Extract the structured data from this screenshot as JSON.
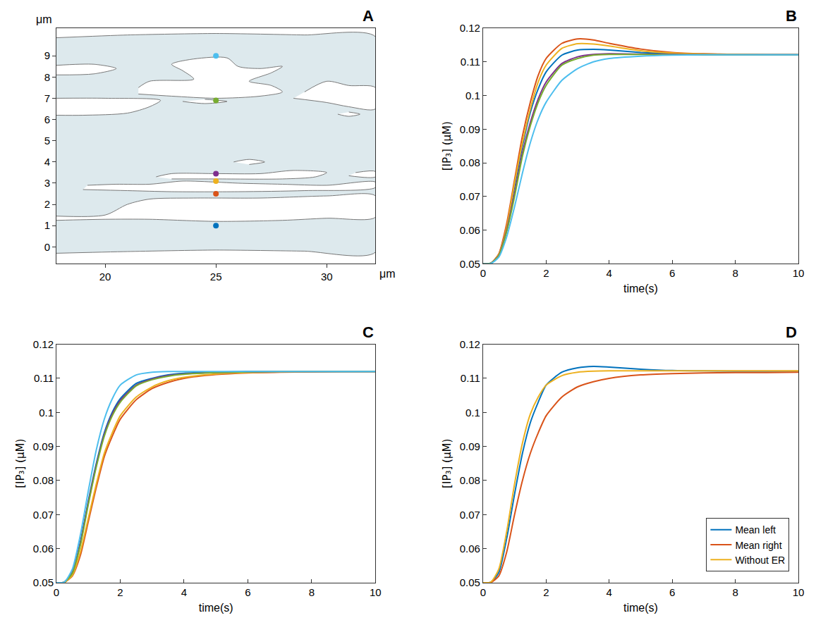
{
  "chart_data": [
    {
      "type": "shape",
      "label": "A",
      "xlabel": "μm",
      "ylabel": "μm",
      "xlim": [
        17.8,
        32.2
      ],
      "ylim": [
        -0.8,
        10.3
      ],
      "xticks": [
        20,
        25,
        30
      ],
      "yticks": [
        0,
        1,
        2,
        3,
        4,
        5,
        6,
        7,
        8,
        9
      ],
      "grid": false,
      "cell": {
        "color": "#dde9ed",
        "x": [
          17.8,
          21,
          25,
          29,
          32.2,
          32.2,
          29,
          25,
          21,
          17.8
        ],
        "y": [
          9.85,
          9.98,
          10.05,
          9.98,
          9.9,
          -0.25,
          -0.2,
          -0.15,
          -0.22,
          -0.3
        ]
      },
      "regions": {
        "color": "#ffffff",
        "shapes": [
          {
            "x": [
              17.8,
              20,
              22,
              25,
              28,
              30,
              32.2,
              32.2,
              30,
              27,
              24,
              22,
              21,
              20,
              17.8
            ],
            "y": [
              1.25,
              1.3,
              1.3,
              1.2,
              1.25,
              1.35,
              1.4,
              2.4,
              2.4,
              2.3,
              2.3,
              2.25,
              2.0,
              1.5,
              1.45
            ]
          },
          {
            "x": [
              19,
              21,
              23,
              26,
              29,
              32.2,
              32.2,
              30,
              28,
              26,
              25,
              23.5,
              22,
              20.5,
              19.2
            ],
            "y": [
              2.7,
              2.65,
              2.6,
              2.6,
              2.65,
              2.8,
              3.05,
              2.9,
              2.95,
              3.0,
              3.05,
              3.1,
              2.95,
              2.95,
              2.9
            ]
          },
          {
            "x": [
              22.3,
              23,
              25,
              27,
              28.5,
              30,
              29.5,
              28,
              25,
              23
            ],
            "y": [
              3.3,
              3.45,
              3.45,
              3.45,
              3.6,
              3.5,
              3.3,
              3.2,
              3.2,
              3.2
            ]
          },
          {
            "x": [
              25.8,
              26.5,
              27.2,
              26.5
            ],
            "y": [
              4.0,
              4.12,
              4.0,
              3.88
            ]
          },
          {
            "x": [
              31,
              32.2,
              32.2,
              31.3
            ],
            "y": [
              3.35,
              3.3,
              3.55,
              3.5
            ]
          },
          {
            "x": [
              21.5,
              23,
              25,
              27,
              28,
              27.5,
              26.5,
              27.5,
              28,
              27,
              26,
              25.5,
              24,
              23,
              23.5,
              24,
              22,
              21.5
            ],
            "y": [
              7.2,
              7.1,
              7.0,
              7.1,
              7.3,
              7.6,
              7.8,
              8.2,
              8.5,
              8.4,
              8.5,
              8.9,
              8.85,
              8.6,
              8.3,
              7.9,
              7.8,
              7.5
            ]
          },
          {
            "x": [
              17.8,
              19,
              21,
              22,
              22.5,
              20,
              17.8
            ],
            "y": [
              6.2,
              6.2,
              6.3,
              6.6,
              6.9,
              7.0,
              7.0
            ]
          },
          {
            "x": [
              17.8,
              19.5,
              20.5,
              19.5,
              17.8
            ],
            "y": [
              8.1,
              8.15,
              8.4,
              8.6,
              8.55
            ]
          },
          {
            "x": [
              28.5,
              30,
              31,
              32.2,
              32.2,
              31,
              30,
              29
            ],
            "y": [
              7.0,
              6.8,
              6.6,
              6.5,
              7.5,
              7.6,
              7.8,
              7.3
            ]
          },
          {
            "x": [
              23.5,
              24.5,
              25.5,
              24.5
            ],
            "y": [
              6.85,
              6.75,
              6.85,
              6.95
            ]
          },
          {
            "x": [
              30.5,
              31,
              31.5,
              31
            ],
            "y": [
              6.25,
              6.15,
              6.25,
              6.35
            ]
          }
        ]
      },
      "points": {
        "x": [
          25,
          25,
          25,
          25,
          25,
          25
        ],
        "y": [
          1.0,
          2.5,
          3.1,
          3.45,
          6.9,
          9.0
        ],
        "colors": [
          "#0072BD",
          "#D95319",
          "#EDB120",
          "#7E2F8E",
          "#77AC30",
          "#4DBEEE"
        ]
      }
    },
    {
      "type": "line",
      "label": "B",
      "xlabel": "time(s)",
      "ylabel": "[IP₃] (μM)",
      "xlim": [
        0,
        10
      ],
      "ylim": [
        0.05,
        0.12
      ],
      "xticks": [
        0,
        2,
        4,
        6,
        8,
        10
      ],
      "yticks": [
        0.05,
        0.06,
        0.07,
        0.08,
        0.09,
        0.1,
        0.11,
        0.12
      ],
      "grid": false,
      "x": [
        0,
        0.25,
        0.5,
        0.75,
        1,
        1.25,
        1.5,
        1.75,
        2,
        2.5,
        3,
        3.5,
        4,
        5,
        6,
        7,
        8,
        9,
        10
      ],
      "series": [
        {
          "color": "#0072BD",
          "values": [
            0.05,
            0.0502,
            0.0527,
            0.061,
            0.073,
            0.085,
            0.095,
            0.102,
            0.107,
            0.112,
            0.1135,
            0.1137,
            0.1135,
            0.1128,
            0.1124,
            0.1122,
            0.1121,
            0.1121,
            0.1121
          ]
        },
        {
          "color": "#D95319",
          "values": [
            0.05,
            0.0502,
            0.053,
            0.062,
            0.075,
            0.088,
            0.098,
            0.106,
            0.111,
            0.1155,
            0.1168,
            0.1165,
            0.1155,
            0.1138,
            0.1128,
            0.1124,
            0.1122,
            0.1121,
            0.1121
          ]
        },
        {
          "color": "#EDB120",
          "values": [
            0.05,
            0.0502,
            0.0528,
            0.061,
            0.074,
            0.086,
            0.096,
            0.104,
            0.109,
            0.114,
            0.1154,
            0.1153,
            0.1147,
            0.1133,
            0.1126,
            0.1123,
            0.1122,
            0.1121,
            0.1121
          ]
        },
        {
          "color": "#7E2F8E",
          "values": [
            0.05,
            0.0502,
            0.0525,
            0.06,
            0.071,
            0.083,
            0.092,
            0.099,
            0.104,
            0.1095,
            0.1115,
            0.1122,
            0.1124,
            0.1123,
            0.1122,
            0.1121,
            0.1121,
            0.1121,
            0.1121
          ]
        },
        {
          "color": "#77AC30",
          "values": [
            0.05,
            0.0502,
            0.0524,
            0.0595,
            0.07,
            0.082,
            0.091,
            0.098,
            0.103,
            0.109,
            0.111,
            0.112,
            0.1122,
            0.1122,
            0.1121,
            0.1121,
            0.1121,
            0.1121,
            0.1121
          ]
        },
        {
          "color": "#4DBEEE",
          "values": [
            0.05,
            0.0501,
            0.052,
            0.058,
            0.067,
            0.077,
            0.086,
            0.093,
            0.098,
            0.1045,
            0.108,
            0.11,
            0.111,
            0.1117,
            0.112,
            0.1121,
            0.1121,
            0.1121,
            0.1121
          ]
        }
      ]
    },
    {
      "type": "line",
      "label": "C",
      "xlabel": "time(s)",
      "ylabel": "[IP₃] (μM)",
      "xlim": [
        0,
        10
      ],
      "ylim": [
        0.05,
        0.12
      ],
      "xticks": [
        0,
        2,
        4,
        6,
        8,
        10
      ],
      "yticks": [
        0.05,
        0.06,
        0.07,
        0.08,
        0.09,
        0.1,
        0.11,
        0.12
      ],
      "grid": false,
      "x": [
        0,
        0.25,
        0.5,
        0.75,
        1,
        1.25,
        1.5,
        1.75,
        2,
        2.5,
        3,
        3.5,
        4,
        5,
        6,
        7,
        8,
        9,
        10
      ],
      "series": [
        {
          "color": "#0072BD",
          "values": [
            0.05,
            0.0502,
            0.053,
            0.062,
            0.074,
            0.085,
            0.094,
            0.1,
            0.104,
            0.1085,
            0.11,
            0.111,
            0.1115,
            0.1118,
            0.112,
            0.112,
            0.112,
            0.112,
            0.112
          ]
        },
        {
          "color": "#D95319",
          "values": [
            0.05,
            0.0501,
            0.052,
            0.058,
            0.068,
            0.078,
            0.087,
            0.093,
            0.098,
            0.1037,
            0.107,
            0.1088,
            0.11,
            0.1111,
            0.1116,
            0.1118,
            0.1119,
            0.112,
            0.112
          ]
        },
        {
          "color": "#EDB120",
          "values": [
            0.05,
            0.0501,
            0.0522,
            0.059,
            0.069,
            0.079,
            0.088,
            0.094,
            0.099,
            0.1045,
            0.1075,
            0.1093,
            0.1103,
            0.1113,
            0.1117,
            0.1119,
            0.112,
            0.112,
            0.112
          ]
        },
        {
          "color": "#7E2F8E",
          "values": [
            0.05,
            0.0502,
            0.053,
            0.0615,
            0.0735,
            0.0845,
            0.0935,
            0.0995,
            0.1035,
            0.108,
            0.1098,
            0.1108,
            0.1113,
            0.1117,
            0.1119,
            0.112,
            0.112,
            0.112,
            0.112
          ]
        },
        {
          "color": "#77AC30",
          "values": [
            0.05,
            0.0502,
            0.0528,
            0.061,
            0.073,
            0.084,
            0.093,
            0.099,
            0.103,
            0.1078,
            0.1096,
            0.1106,
            0.1112,
            0.1117,
            0.1119,
            0.112,
            0.112,
            0.112,
            0.112
          ]
        },
        {
          "color": "#4DBEEE",
          "values": [
            0.05,
            0.0502,
            0.054,
            0.064,
            0.077,
            0.089,
            0.098,
            0.104,
            0.108,
            0.111,
            0.1118,
            0.112,
            0.112,
            0.112,
            0.112,
            0.112,
            0.112,
            0.112,
            0.112
          ]
        }
      ]
    },
    {
      "type": "line",
      "label": "D",
      "xlabel": "time(s)",
      "ylabel": "[IP₃] (μM)",
      "xlim": [
        0,
        10
      ],
      "ylim": [
        0.05,
        0.12
      ],
      "xticks": [
        0,
        2,
        4,
        6,
        8,
        10
      ],
      "yticks": [
        0.05,
        0.06,
        0.07,
        0.08,
        0.09,
        0.1,
        0.11,
        0.12
      ],
      "grid": false,
      "legend": "lower right",
      "x": [
        0,
        0.25,
        0.5,
        0.75,
        1,
        1.25,
        1.5,
        1.75,
        2,
        2.5,
        3,
        3.5,
        4,
        5,
        6,
        7,
        8,
        9,
        10
      ],
      "series": [
        {
          "name": "Mean left",
          "color": "#0072BD",
          "values": [
            0.05,
            0.0502,
            0.053,
            0.063,
            0.076,
            0.088,
            0.097,
            0.103,
            0.108,
            0.1118,
            0.1131,
            0.1135,
            0.1133,
            0.1127,
            0.1123,
            0.1122,
            0.1121,
            0.1121,
            0.1121
          ]
        },
        {
          "name": "Mean right",
          "color": "#D95319",
          "values": [
            0.05,
            0.0501,
            0.052,
            0.059,
            0.07,
            0.08,
            0.088,
            0.094,
            0.099,
            0.1045,
            0.1075,
            0.109,
            0.11,
            0.111,
            0.1114,
            0.1116,
            0.1117,
            0.1117,
            0.1118
          ]
        },
        {
          "name": "Without ER",
          "color": "#EDB120",
          "values": [
            0.05,
            0.0502,
            0.054,
            0.065,
            0.079,
            0.091,
            0.0995,
            0.1045,
            0.108,
            0.1108,
            0.1118,
            0.1121,
            0.1122,
            0.1122,
            0.1122,
            0.1122,
            0.1122,
            0.1122,
            0.1122
          ]
        }
      ]
    }
  ]
}
